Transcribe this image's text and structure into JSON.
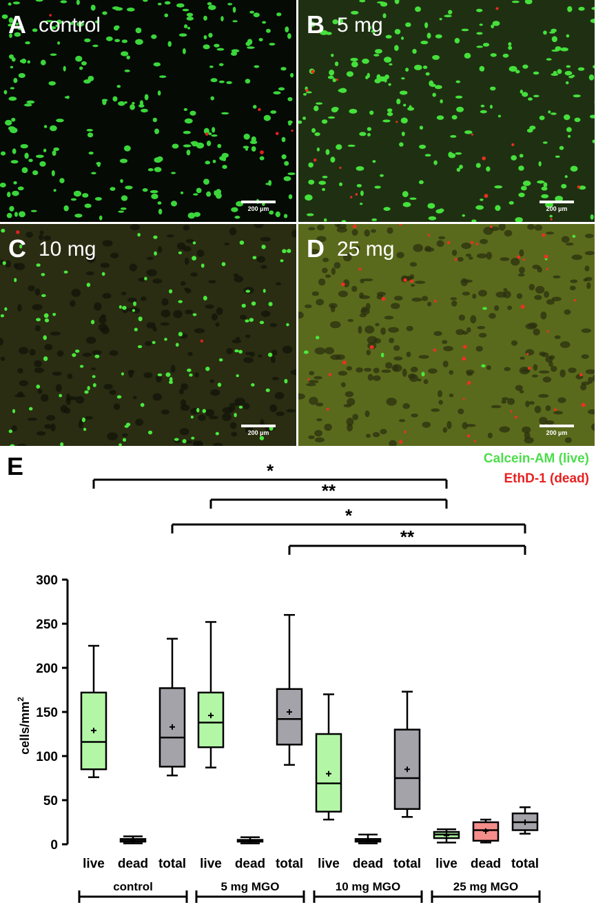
{
  "panels": [
    {
      "letter": "A",
      "label": "control",
      "scale": "200 µm",
      "bg": "#050a04",
      "green_count": 260,
      "red_count": 6,
      "green_color": "#3bd63b",
      "red_color": "#e02020"
    },
    {
      "letter": "B",
      "label": "5 mg",
      "scale": "200 µm",
      "bg": "#1f3012",
      "green_count": 240,
      "red_count": 16,
      "green_color": "#46e03c",
      "red_color": "#e83020"
    },
    {
      "letter": "C",
      "label": "10 mg",
      "scale": "200 µm",
      "bg": "#2a2d12",
      "green_count": 110,
      "red_count": 2,
      "green_color": "#4ae83e",
      "red_color": "#e02020"
    },
    {
      "letter": "D",
      "label": "25 mg",
      "scale": "200 µm",
      "bg": "#5a6a1c",
      "green_count": 8,
      "red_count": 45,
      "green_color": "#4ae83e",
      "red_color": "#f03020"
    }
  ],
  "figure_letter": "E",
  "legend": [
    {
      "label": "Calcein-AM (live)",
      "color": "#4cdd4c"
    },
    {
      "label": "EthD-1 (dead)",
      "color": "#e82020"
    }
  ],
  "chart_data": {
    "type": "box",
    "ylabel": "cells/mm2",
    "ylabel_main": "cells/mm",
    "ylabel_sup": "2",
    "ylim": [
      0,
      300
    ],
    "yticks": [
      "0",
      "50",
      "100",
      "150",
      "200",
      "250",
      "300"
    ],
    "group_labels": [
      "control",
      "5 mg MGO",
      "10 mg MGO",
      "25 mg MGO"
    ],
    "categories": [
      "live",
      "dead",
      "total",
      "live",
      "dead",
      "total",
      "live",
      "dead",
      "total",
      "live",
      "dead",
      "total"
    ],
    "box_colors": {
      "live": "#b3f7a6",
      "dead": "#f58d8a",
      "total": "#a3a3a9"
    },
    "boxes": [
      {
        "group": "control",
        "kind": "live",
        "min": 76,
        "q1": 85,
        "median": 116,
        "q3": 172,
        "max": 225,
        "mean": 129
      },
      {
        "group": "control",
        "kind": "dead",
        "min": 1,
        "q1": 3,
        "median": 5,
        "q3": 6,
        "max": 9,
        "mean": 4
      },
      {
        "group": "control",
        "kind": "total",
        "min": 78,
        "q1": 88,
        "median": 121,
        "q3": 177,
        "max": 233,
        "mean": 133
      },
      {
        "group": "5 mg MGO",
        "kind": "live",
        "min": 87,
        "q1": 110,
        "median": 138,
        "q3": 172,
        "max": 252,
        "mean": 146
      },
      {
        "group": "5 mg MGO",
        "kind": "dead",
        "min": 1,
        "q1": 3,
        "median": 4,
        "q3": 5,
        "max": 8,
        "mean": 4
      },
      {
        "group": "5 mg MGO",
        "kind": "total",
        "min": 90,
        "q1": 113,
        "median": 142,
        "q3": 176,
        "max": 260,
        "mean": 150
      },
      {
        "group": "10 mg MGO",
        "kind": "live",
        "min": 28,
        "q1": 37,
        "median": 69,
        "q3": 125,
        "max": 170,
        "mean": 80
      },
      {
        "group": "10 mg MGO",
        "kind": "dead",
        "min": 1,
        "q1": 3,
        "median": 4,
        "q3": 6,
        "max": 11,
        "mean": 4
      },
      {
        "group": "10 mg MGO",
        "kind": "total",
        "min": 31,
        "q1": 40,
        "median": 75,
        "q3": 130,
        "max": 173,
        "mean": 85
      },
      {
        "group": "25 mg MGO",
        "kind": "live",
        "min": 2,
        "q1": 7,
        "median": 11,
        "q3": 14,
        "max": 17,
        "mean": 10
      },
      {
        "group": "25 mg MGO",
        "kind": "dead",
        "min": 2,
        "q1": 4,
        "median": 16,
        "q3": 25,
        "max": 28,
        "mean": 15
      },
      {
        "group": "25 mg MGO",
        "kind": "total",
        "min": 12,
        "q1": 16,
        "median": 25,
        "q3": 35,
        "max": 42,
        "mean": 25
      }
    ],
    "significance": [
      {
        "from": 0,
        "to": 9,
        "label": "*"
      },
      {
        "from": 3,
        "to": 9,
        "label": "**"
      },
      {
        "from": 2,
        "to": 11,
        "label": "*"
      },
      {
        "from": 5,
        "to": 11,
        "label": "**"
      }
    ]
  }
}
